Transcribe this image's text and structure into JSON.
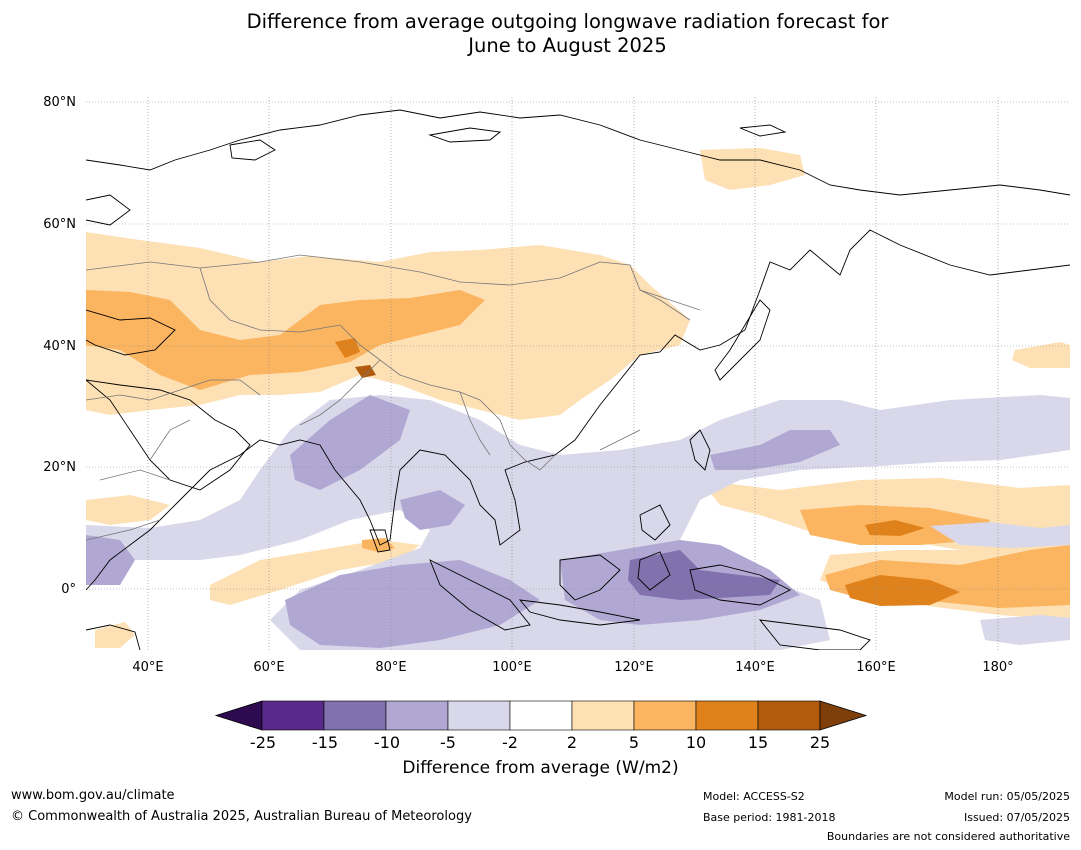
{
  "title": {
    "line1": "Difference from average outgoing longwave radiation forecast for",
    "line2": "June to August 2025"
  },
  "map": {
    "lat_labels": [
      "80°N",
      "60°N",
      "40°N",
      "20°N",
      "0°"
    ],
    "lon_labels": [
      "40°E",
      "60°E",
      "80°E",
      "100°E",
      "120°E",
      "140°E",
      "160°E",
      "180°"
    ]
  },
  "colorbar": {
    "ticks": [
      "-25",
      "-15",
      "-10",
      "-5",
      "-2",
      "2",
      "5",
      "10",
      "15",
      "25"
    ],
    "colors": [
      "#5a2a8a",
      "#8171ad",
      "#b0a8d2",
      "#d9d8ea",
      "#ffffff",
      "#fde0b4",
      "#fbb45f",
      "#e0821c",
      "#b25b0e"
    ],
    "under_color": "#2e0a50",
    "over_color": "#7f3f0a",
    "label": "Difference from average (W/m2)"
  },
  "footer": {
    "website": "www.bom.gov.au/climate",
    "copyright": "© Commonwealth of Australia 2025, Australian Bureau of Meteorology",
    "model": "Model: ACCESS-S2",
    "base_period": "Base period: 1981-2018",
    "model_run": "Model run: 05/05/2025",
    "issued": "Issued: 07/05/2025",
    "disclaimer": "Boundaries are not considered authoritative"
  }
}
